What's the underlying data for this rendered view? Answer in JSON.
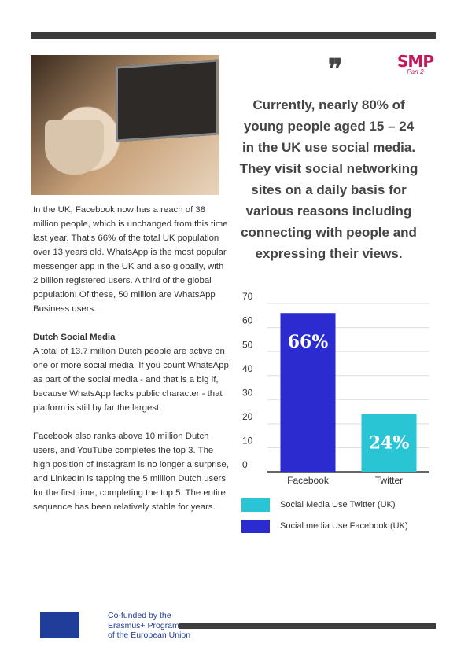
{
  "logo": {
    "title": "SMP",
    "subtitle": "Part 2"
  },
  "quote": [
    "Currently, nearly 80% of",
    "young people aged 15 – 24",
    "in the UK use social media.",
    "They visit social networking",
    "sites on a daily basis for",
    "various reasons including",
    "connecting with people and",
    "expressing their views."
  ],
  "body": {
    "intro": "In the UK, Facebook now has a reach of 38 million people, which is unchanged from this time last year. That's 66% of the total UK population over 13 years old. WhatsApp is the most popular messenger app in the UK and also globally, with 2 billion registered users. A third of the global population! Of these, 50 million are WhatsApp Business users.",
    "heading": "Dutch Social Media",
    "paragraph1": "A total of 13.7 million Dutch people are active on one or more social media. If you count WhatsApp as part of the social media - and that is a big if, because WhatsApp lacks public character - that platform is still by far the largest.",
    "paragraph2": "Facebook also ranks above 10 million Dutch users, and YouTube completes the top 3. The high position of Instagram is no longer a surprise, and LinkedIn is tapping the 5 million Dutch users for the first time, completing the top 5. The entire sequence has been relatively stable for years."
  },
  "footer": {
    "funding": [
      "Co-funded by the",
      "Erasmus+ Programme",
      "of the European Union"
    ]
  },
  "chart_data": {
    "type": "bar",
    "categories": [
      "Facebook",
      "Twitter"
    ],
    "series": [
      {
        "name": "Social Media Use Twitter (UK)",
        "color": "#29c5d5",
        "values": [
          null,
          24
        ],
        "value_labels": [
          null,
          "24%"
        ]
      },
      {
        "name": "Social media Use Facebook (UK)",
        "color": "#2b2bcf",
        "values": [
          66,
          null
        ],
        "value_labels": [
          "66%",
          null
        ]
      }
    ],
    "ylim": [
      0,
      70
    ],
    "yticks": [
      0,
      10,
      20,
      30,
      40,
      50,
      60,
      70
    ],
    "grid": true
  }
}
